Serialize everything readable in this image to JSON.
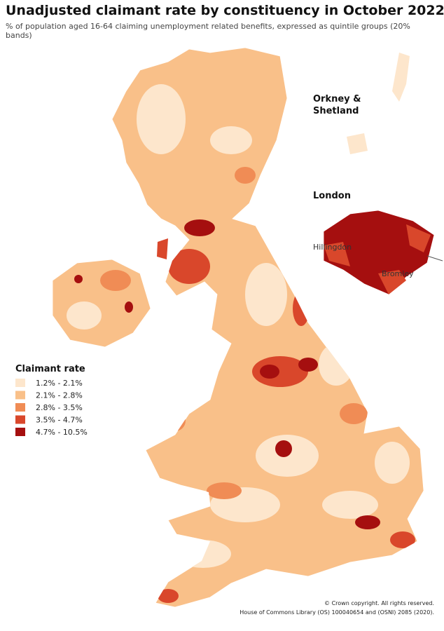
{
  "header": {
    "title": "Unadjusted claimant rate by constituency in October 2022",
    "subtitle": "% of population aged 16-64 claiming unemployment related benefits, expressed as quintile groups (20% bands)"
  },
  "map_labels": {
    "orkney_shetland": "Orkney & Shetland",
    "london": "London",
    "hillingdon": "Hillingdon",
    "bromley": "Bromley"
  },
  "legend": {
    "title": "Claimant rate",
    "items": [
      {
        "label": "1.2% - 2.1%",
        "color": "#fde6cc"
      },
      {
        "label": "2.1% - 2.8%",
        "color": "#f9c089"
      },
      {
        "label": "2.8% - 3.5%",
        "color": "#f08c55"
      },
      {
        "label": "3.5% - 4.7%",
        "color": "#d9472b"
      },
      {
        "label": "4.7% - 10.5%",
        "color": "#a50f0f"
      }
    ]
  },
  "footer": {
    "copyright": "© Crown copyright. All rights reserved.",
    "source": "House of Commons Library (OS) 100040654 and (OSNI) 2085 (2020)."
  }
}
